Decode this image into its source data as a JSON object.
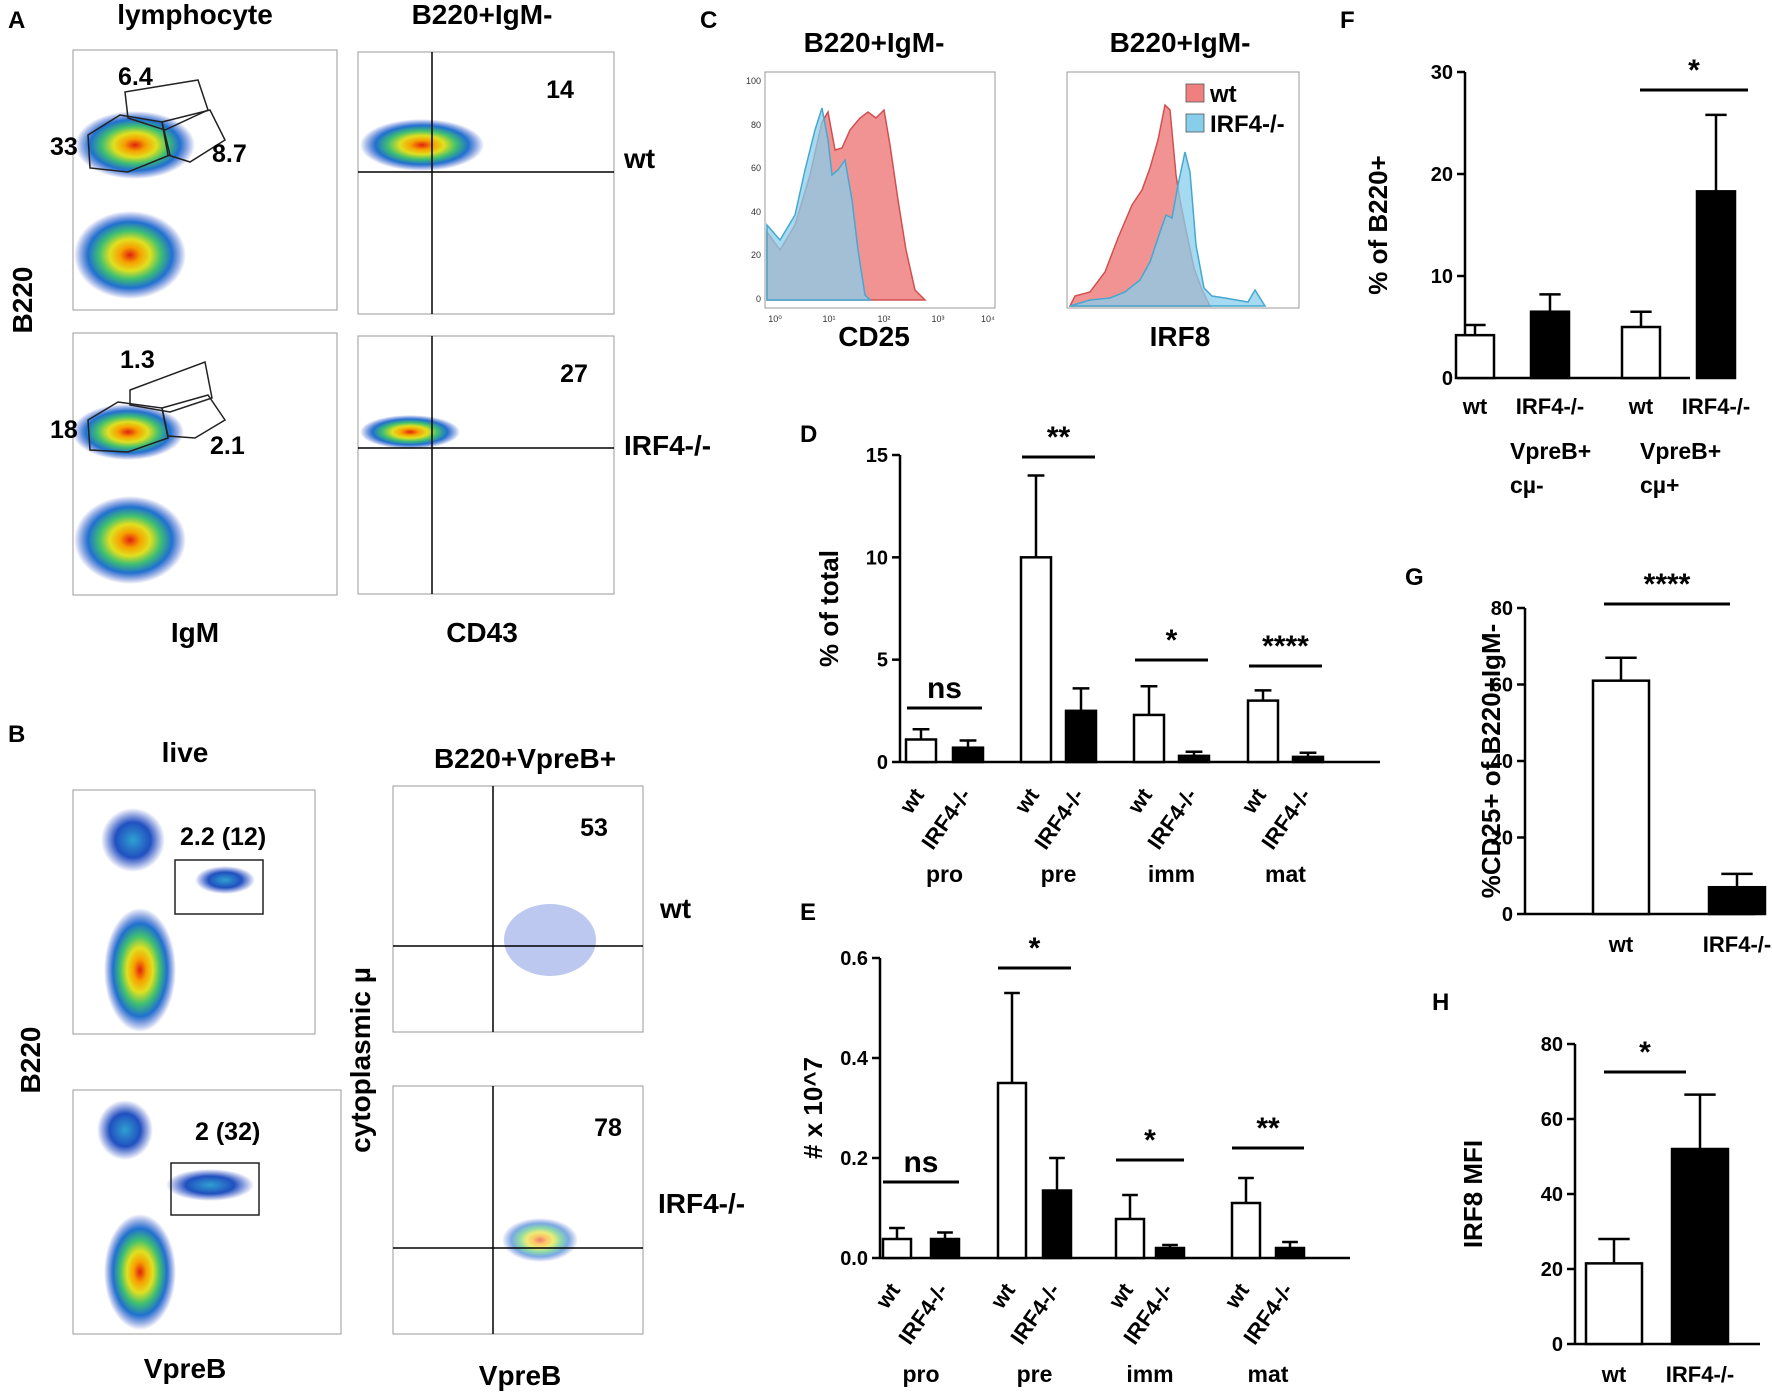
{
  "panels": {
    "A": {
      "letter": "A",
      "col_titles": [
        "lymphocyte",
        "B220+IgM-"
      ],
      "y_axis": "B220",
      "x_axes": [
        "IgM",
        "CD43"
      ],
      "rows": [
        {
          "genotype": "wt",
          "gates": [
            "6.4",
            "33",
            "8.7"
          ],
          "quadrant": "14"
        },
        {
          "genotype": "IRF4-/-",
          "gates": [
            "1.3",
            "18",
            "2.1"
          ],
          "quadrant": "27"
        }
      ]
    },
    "B": {
      "letter": "B",
      "col_titles": [
        "live",
        "B220+VpreB+"
      ],
      "y_axes": [
        "B220",
        "cytoplasmic µ"
      ],
      "x_axes": [
        "VpreB",
        "VpreB"
      ],
      "rows": [
        {
          "genotype": "wt",
          "gate": "2.2 (12)",
          "quadrant": "53"
        },
        {
          "genotype": "IRF4-/-",
          "gate": "2 (32)",
          "quadrant": "78"
        }
      ]
    },
    "C": {
      "letter": "C",
      "titles": [
        "B220+IgM-",
        "B220+IgM-"
      ],
      "x_axes": [
        "CD25",
        "IRF8"
      ],
      "cd25_y_ticks": [
        "0",
        "20",
        "40",
        "60",
        "80",
        "100"
      ],
      "cd25_x_ticks": [
        "10⁰",
        "10¹",
        "10²",
        "10³",
        "10⁴"
      ],
      "legend": [
        {
          "label": "wt",
          "color": "#f08080"
        },
        {
          "label": "IRF4-/-",
          "color": "#87ceeb"
        }
      ]
    }
  },
  "chart_data": [
    {
      "id": "D",
      "letter": "D",
      "type": "bar",
      "ylabel": "% of total",
      "ylim": [
        0,
        15
      ],
      "yticks": [
        0,
        5,
        10,
        15
      ],
      "groups": [
        "pro",
        "pre",
        "imm",
        "mat"
      ],
      "series": [
        {
          "name": "wt",
          "color": "#ffffff",
          "values": [
            1.1,
            10.0,
            2.3,
            3.0
          ],
          "errors": [
            0.5,
            4.0,
            1.4,
            0.5
          ]
        },
        {
          "name": "IRF4-/-",
          "color": "#000000",
          "values": [
            0.7,
            2.5,
            0.3,
            0.25
          ],
          "errors": [
            0.35,
            1.1,
            0.2,
            0.2
          ]
        }
      ],
      "significance": [
        "ns",
        "**",
        "*",
        "****"
      ]
    },
    {
      "id": "E",
      "letter": "E",
      "type": "bar",
      "ylabel": "# x 10^7",
      "ylim": [
        0,
        0.6
      ],
      "yticks": [
        0.0,
        0.2,
        0.4,
        0.6
      ],
      "groups": [
        "pro",
        "pre",
        "imm",
        "mat"
      ],
      "series": [
        {
          "name": "wt",
          "color": "#ffffff",
          "values": [
            0.038,
            0.35,
            0.078,
            0.11
          ],
          "errors": [
            0.022,
            0.18,
            0.048,
            0.05
          ]
        },
        {
          "name": "IRF4-/-",
          "color": "#000000",
          "values": [
            0.038,
            0.135,
            0.02,
            0.02
          ],
          "errors": [
            0.013,
            0.065,
            0.006,
            0.012
          ]
        }
      ],
      "significance": [
        "ns",
        "*",
        "*",
        "**"
      ]
    },
    {
      "id": "F",
      "letter": "F",
      "type": "bar",
      "ylabel": "% of  B220+",
      "ylim": [
        0,
        30
      ],
      "yticks": [
        0,
        10,
        20,
        30
      ],
      "categories": [
        "wt",
        "IRF4-/-",
        "wt",
        "IRF4-/-"
      ],
      "colors": [
        "#ffffff",
        "#000000",
        "#ffffff",
        "#000000"
      ],
      "values": [
        4.2,
        6.5,
        5.0,
        18.3
      ],
      "errors": [
        1.0,
        1.7,
        1.5,
        7.5
      ],
      "group_labels": [
        [
          "VpreB+",
          "cµ-"
        ],
        [
          "VpreB+",
          "cµ+"
        ]
      ],
      "significance": [
        "*"
      ]
    },
    {
      "id": "G",
      "letter": "G",
      "type": "bar",
      "ylabel": "%CD25+ of  B220+IgM-",
      "ylim": [
        0,
        80
      ],
      "yticks": [
        0,
        20,
        40,
        60,
        80
      ],
      "categories": [
        "wt",
        "IRF4-/-"
      ],
      "colors": [
        "#ffffff",
        "#000000"
      ],
      "values": [
        61,
        7
      ],
      "errors": [
        6,
        3.5
      ],
      "significance": [
        "****"
      ]
    },
    {
      "id": "H",
      "letter": "H",
      "type": "bar",
      "ylabel": "IRF8 MFI",
      "ylim": [
        0,
        80
      ],
      "yticks": [
        0,
        20,
        40,
        60,
        80
      ],
      "categories": [
        "wt",
        "IRF4-/-"
      ],
      "colors": [
        "#ffffff",
        "#000000"
      ],
      "values": [
        21.5,
        52
      ],
      "errors": [
        6.5,
        14.5
      ],
      "significance": [
        "*"
      ]
    }
  ]
}
